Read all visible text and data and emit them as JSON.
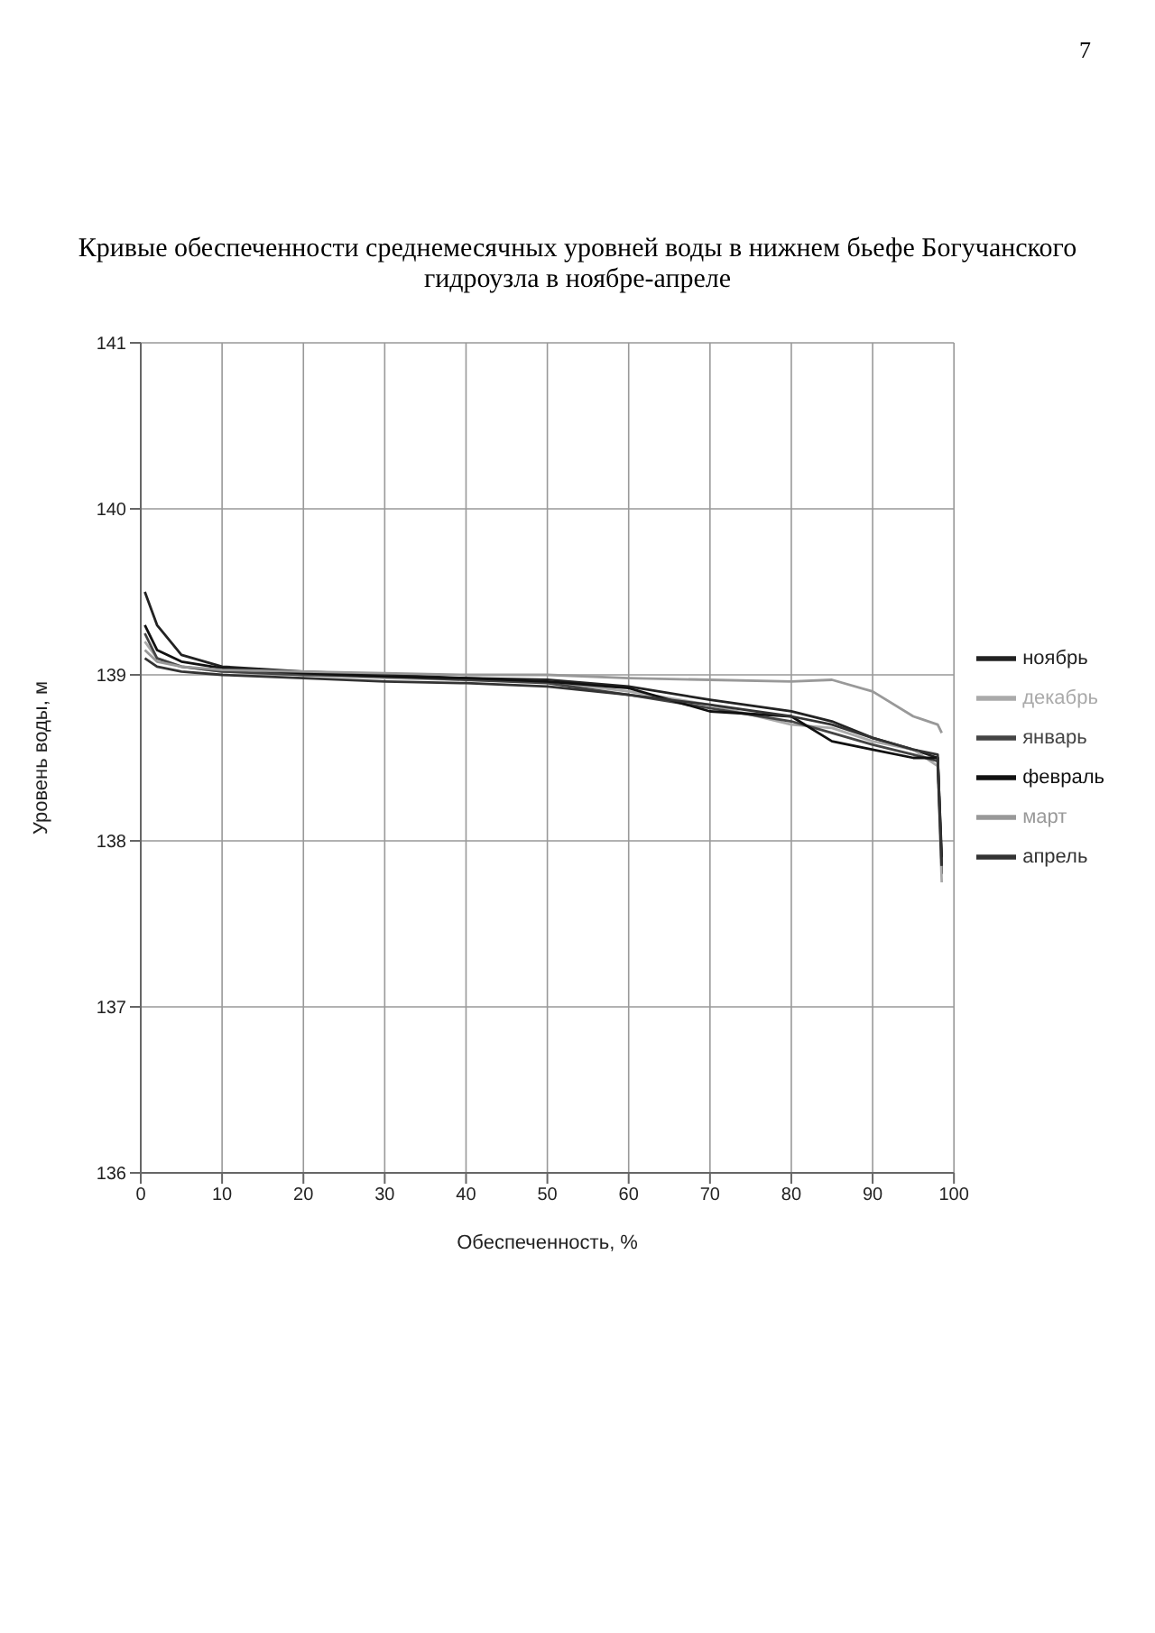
{
  "chart_data": {
    "type": "line",
    "title": "Кривые обеспеченности среднемесячных уровней воды в нижнем бьефе Богучанского гидроузла в ноябре-апреле",
    "xlabel": "Обеспеченность, %",
    "ylabel": "Уровень воды, м",
    "annotations": [
      "7"
    ],
    "x": [
      0.5,
      2,
      5,
      10,
      20,
      30,
      40,
      50,
      60,
      70,
      80,
      85,
      90,
      95,
      98,
      98.5
    ],
    "xlim": [
      0,
      100
    ],
    "xticks": [
      0,
      10,
      20,
      30,
      40,
      50,
      60,
      70,
      80,
      90,
      100
    ],
    "ylim": [
      136,
      141
    ],
    "yticks": [
      136,
      137,
      138,
      139,
      140,
      141
    ],
    "grid": true,
    "legend": "right",
    "marker": "none",
    "line_style": "solid",
    "series": [
      {
        "name": "ноябрь",
        "color": "#222222",
        "values": [
          139.5,
          139.3,
          139.12,
          139.05,
          139.02,
          139.0,
          138.98,
          138.97,
          138.93,
          138.85,
          138.78,
          138.72,
          138.62,
          138.55,
          138.5,
          137.8
        ]
      },
      {
        "name": "декабрь",
        "color": "#aaaaaa",
        "values": [
          139.2,
          139.1,
          139.05,
          139.02,
          139.0,
          138.98,
          138.97,
          138.96,
          138.9,
          138.82,
          138.7,
          138.68,
          138.6,
          138.55,
          138.45,
          137.75
        ]
      },
      {
        "name": "январь",
        "color": "#444444",
        "values": [
          139.25,
          139.1,
          139.05,
          139.02,
          139.0,
          138.99,
          138.97,
          138.95,
          138.88,
          138.8,
          138.72,
          138.65,
          138.58,
          138.52,
          138.48,
          137.85
        ]
      },
      {
        "name": "февраль",
        "color": "#111111",
        "values": [
          139.3,
          139.15,
          139.08,
          139.04,
          139.01,
          138.99,
          138.98,
          138.96,
          138.92,
          138.78,
          138.75,
          138.6,
          138.55,
          138.5,
          138.5,
          137.9
        ]
      },
      {
        "name": "март",
        "color": "#999999",
        "values": [
          139.15,
          139.08,
          139.05,
          139.03,
          139.02,
          139.01,
          139.0,
          139.0,
          138.98,
          138.97,
          138.96,
          138.97,
          138.9,
          138.75,
          138.7,
          138.65
        ]
      },
      {
        "name": "апрель",
        "color": "#333333",
        "values": [
          139.1,
          139.05,
          139.02,
          139.0,
          138.98,
          138.96,
          138.95,
          138.93,
          138.88,
          138.82,
          138.75,
          138.7,
          138.62,
          138.55,
          138.52,
          137.85
        ]
      }
    ]
  }
}
